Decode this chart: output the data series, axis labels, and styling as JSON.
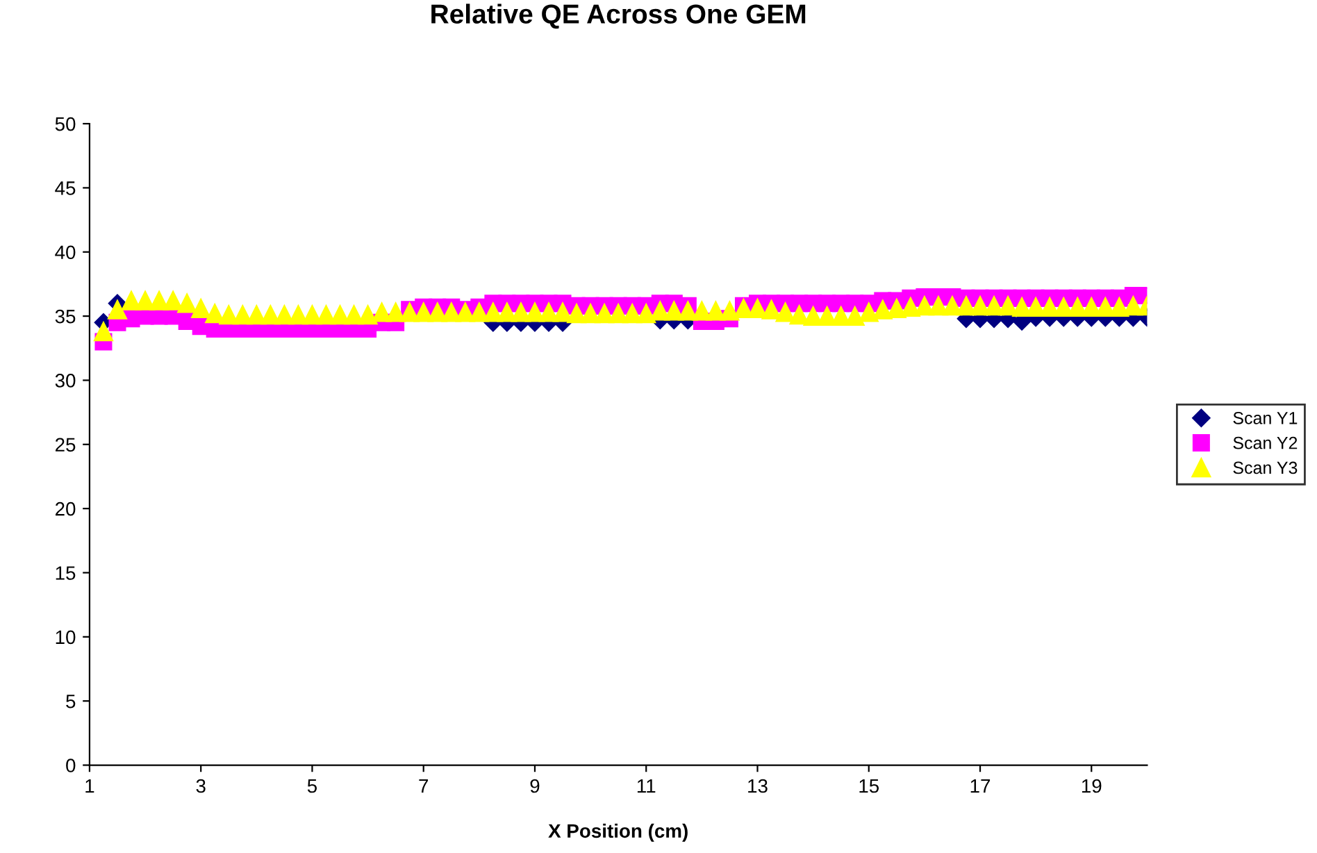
{
  "chart_data": {
    "type": "scatter",
    "title": "Relative QE Across One GEM",
    "xlabel": "X Position (cm)",
    "x": [
      1.25,
      1.5,
      1.75,
      2,
      2.25,
      2.5,
      2.75,
      3,
      3.25,
      3.5,
      3.75,
      4,
      4.25,
      4.5,
      4.75,
      5,
      5.25,
      5.5,
      5.75,
      6,
      6.25,
      6.5,
      6.75,
      7,
      7.25,
      7.5,
      7.75,
      8,
      8.25,
      8.5,
      8.75,
      9,
      9.25,
      9.5,
      9.75,
      10,
      10.25,
      10.5,
      10.75,
      11,
      11.25,
      11.5,
      11.75,
      12,
      12.25,
      12.5,
      12.75,
      13,
      13.25,
      13.5,
      13.75,
      14,
      14.25,
      14.5,
      14.75,
      15,
      15.25,
      15.5,
      15.75,
      16,
      16.25,
      16.5,
      16.75,
      17,
      17.25,
      17.5,
      17.75,
      18,
      18.25,
      18.5,
      18.75,
      19,
      19.25,
      19.5,
      19.75,
      20
    ],
    "series": [
      {
        "name": "Scan Y1",
        "color": "#000080",
        "marker": "diamond",
        "values": [
          34.5,
          36,
          null,
          null,
          null,
          null,
          null,
          null,
          null,
          null,
          null,
          null,
          null,
          null,
          null,
          null,
          null,
          null,
          null,
          null,
          null,
          null,
          null,
          null,
          null,
          null,
          null,
          null,
          34.5,
          34.5,
          34.5,
          34.5,
          34.5,
          34.5,
          null,
          null,
          null,
          null,
          null,
          null,
          34.7,
          34.7,
          34.7,
          null,
          null,
          null,
          null,
          null,
          null,
          null,
          null,
          null,
          null,
          null,
          null,
          null,
          null,
          null,
          null,
          null,
          null,
          null,
          34.8,
          34.8,
          34.8,
          34.8,
          34.6,
          34.9,
          34.9,
          34.9,
          34.9,
          34.9,
          34.9,
          34.9,
          34.9,
          34.9
        ]
      },
      {
        "name": "Scan Y2",
        "color": "#ff00ff",
        "marker": "square",
        "values": [
          33,
          34.5,
          34.8,
          35,
          35,
          35,
          34.6,
          34.2,
          34,
          34,
          34,
          34,
          34,
          34,
          34,
          34,
          34,
          34,
          34,
          34,
          34.5,
          34.5,
          35.5,
          35.7,
          35.7,
          35.7,
          35.5,
          35.7,
          36,
          36,
          36,
          36,
          36,
          36,
          35.8,
          35.8,
          35.8,
          35.8,
          35.8,
          35.8,
          36,
          36,
          35.8,
          34.6,
          34.6,
          34.8,
          35.8,
          36,
          36,
          36,
          36,
          36,
          36,
          36,
          36,
          36,
          36.2,
          36.2,
          36.4,
          36.5,
          36.5,
          36.5,
          36.4,
          36.4,
          36.4,
          36.4,
          36.4,
          36.4,
          36.4,
          36.4,
          36.4,
          36.4,
          36.4,
          36.4,
          36.6,
          36.6
        ]
      },
      {
        "name": "Scan Y3",
        "color": "#ffff00",
        "marker": "triangle",
        "values": [
          33.8,
          35.5,
          36.2,
          36.2,
          36.2,
          36.2,
          36,
          35.6,
          35.2,
          35.1,
          35.1,
          35.1,
          35.1,
          35.1,
          35.1,
          35.1,
          35.1,
          35.1,
          35.1,
          35.1,
          35.3,
          35.3,
          35.3,
          35.3,
          35.3,
          35.3,
          35.3,
          35.3,
          35.3,
          35.3,
          35.3,
          35.3,
          35.3,
          35.3,
          35.2,
          35.2,
          35.2,
          35.2,
          35.2,
          35.2,
          35.4,
          35.4,
          35.4,
          35.4,
          35.4,
          35.4,
          35.6,
          35.6,
          35.5,
          35.3,
          35.1,
          35,
          35,
          35,
          35,
          35.3,
          35.5,
          35.6,
          35.7,
          35.8,
          35.8,
          35.8,
          35.8,
          35.8,
          35.8,
          35.8,
          35.7,
          35.7,
          35.7,
          35.7,
          35.7,
          35.7,
          35.7,
          35.7,
          35.8,
          35.8
        ]
      }
    ],
    "xlim": [
      1,
      20
    ],
    "xticks": [
      1,
      3,
      5,
      7,
      9,
      11,
      13,
      15,
      17,
      19
    ],
    "ylim": [
      0,
      50
    ],
    "yticks": [
      0,
      5,
      10,
      15,
      20,
      25,
      30,
      35,
      40,
      45,
      50
    ],
    "grid": false,
    "legend": "right"
  }
}
